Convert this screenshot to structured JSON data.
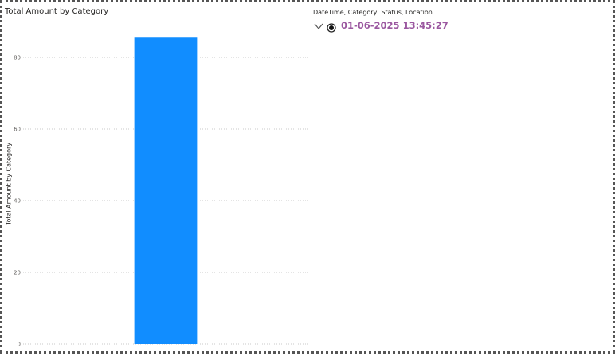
{
  "chart_data": {
    "type": "bar",
    "title": "Total Amount by Category",
    "ylabel": "Total Amount by Category",
    "xlabel": "",
    "categories": [
      ""
    ],
    "values": [
      85.5
    ],
    "ylim": [
      0,
      90
    ],
    "yticks": [
      0,
      20,
      40,
      60,
      80
    ],
    "grid": true,
    "bar_color": "#118dff"
  },
  "slicer": {
    "header": "DateTime, Category, Status, Location",
    "selected_value": "01-06-2025 13:45:27",
    "value_color": "#9b58a0",
    "icons": [
      "chevron-down-icon",
      "radio-selected-icon"
    ]
  }
}
